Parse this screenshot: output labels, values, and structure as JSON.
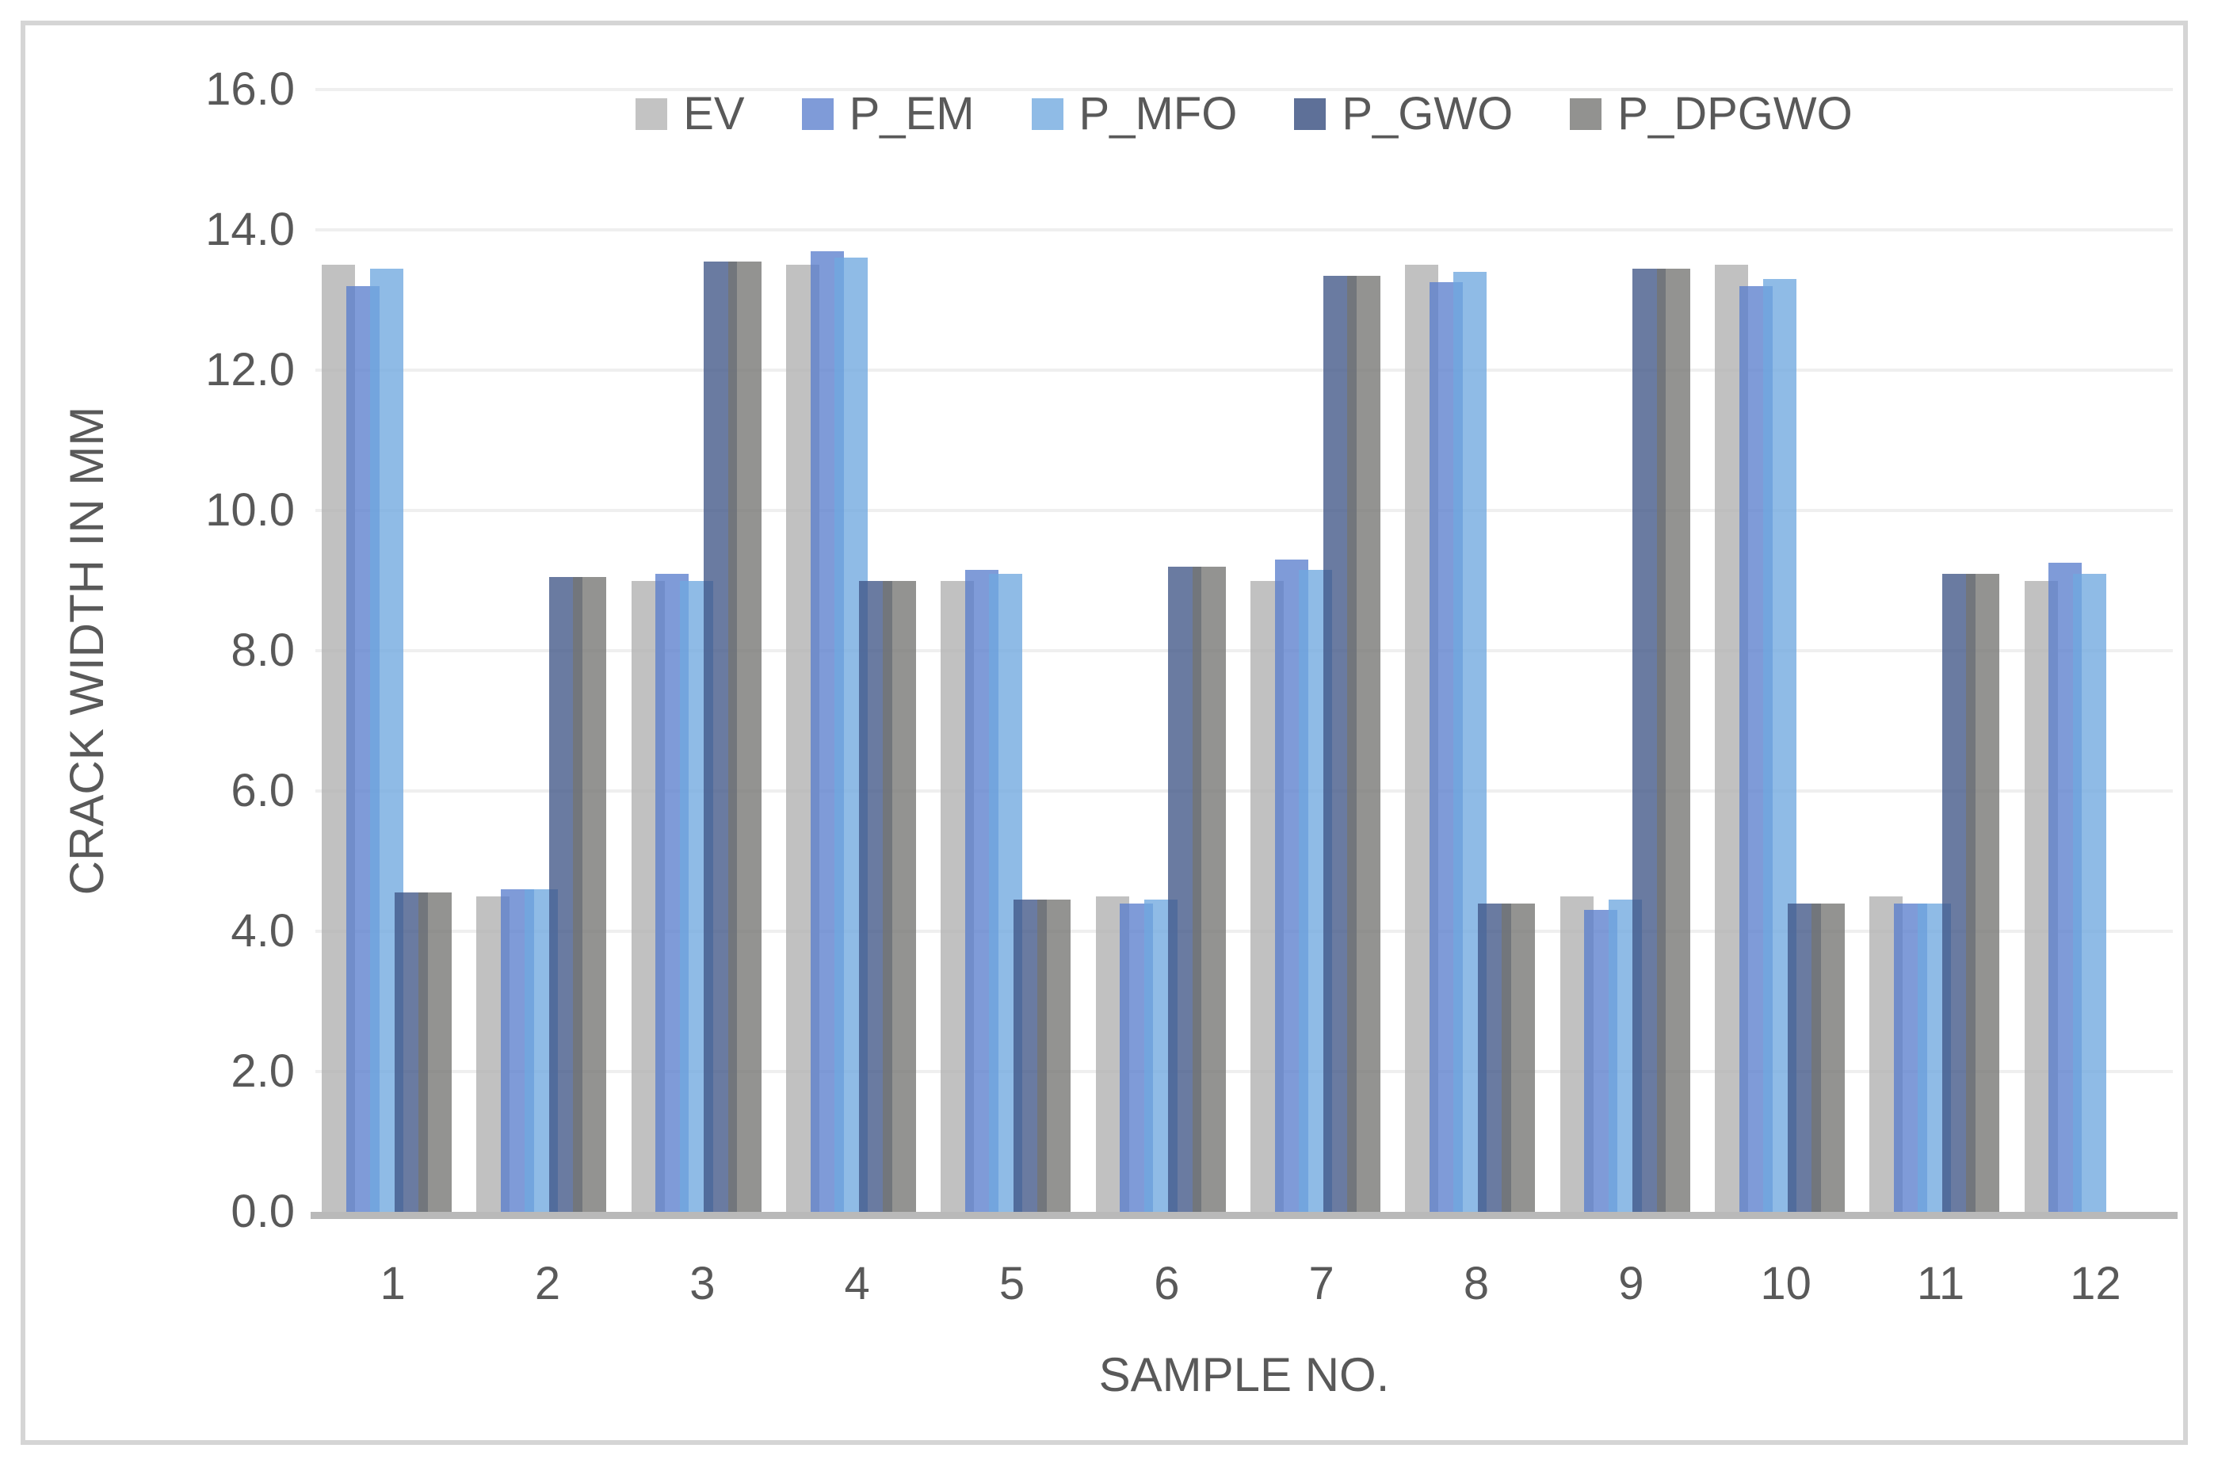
{
  "chart_data": {
    "type": "bar",
    "title": "",
    "xlabel": "SAMPLE NO.",
    "ylabel": "CRACK WIDTH IN MM",
    "categories": [
      "1",
      "2",
      "3",
      "4",
      "5",
      "6",
      "7",
      "8",
      "9",
      "10",
      "11",
      "12"
    ],
    "series": [
      {
        "name": "EV",
        "fill": "#b0b0b0",
        "legend_swatch": "#c3c3c3",
        "values": [
          13.5,
          4.5,
          9.0,
          13.5,
          9.0,
          4.5,
          9.0,
          13.5,
          4.5,
          13.5,
          4.5,
          9.0
        ]
      },
      {
        "name": "P_EM",
        "fill": "#5b7fcd",
        "legend_swatch": "#7f9bd8",
        "values": [
          13.2,
          4.6,
          9.1,
          13.7,
          9.15,
          4.4,
          9.3,
          13.25,
          4.3,
          13.2,
          4.4,
          9.25
        ]
      },
      {
        "name": "P_MFO",
        "fill": "#70a8df",
        "legend_swatch": "#8fbbe6",
        "values": [
          13.45,
          4.6,
          9.0,
          13.6,
          9.1,
          4.45,
          9.15,
          13.4,
          4.45,
          13.3,
          4.4,
          9.1
        ]
      },
      {
        "name": "P_GWO",
        "fill": "#405687",
        "legend_swatch": "#5e7098",
        "values": [
          4.55,
          9.05,
          13.55,
          9.0,
          4.45,
          9.2,
          13.35,
          4.4,
          13.45,
          4.4,
          9.1,
          0
        ]
      },
      {
        "name": "P_DPGWO",
        "fill": "#757572",
        "legend_swatch": "#929290",
        "values": [
          4.55,
          9.05,
          13.55,
          9.0,
          4.45,
          9.2,
          13.35,
          4.4,
          13.45,
          4.4,
          9.1,
          0
        ]
      }
    ],
    "bar_alpha": 0.78,
    "ylim": [
      0,
      16
    ],
    "ytick_step": 2,
    "ytick_labels": [
      "16.0",
      "14.0",
      "12.0",
      "10.0",
      "8.0",
      "6.0",
      "4.0",
      "2.0",
      "0.0"
    ],
    "grid": true,
    "legend_position": "top"
  },
  "style": {
    "text_color": "#595959",
    "gridline_color": "#efefef",
    "axis_line_color": "#b9b9b9",
    "frame_color": "#d5d5d5",
    "background": "#ffffff"
  }
}
